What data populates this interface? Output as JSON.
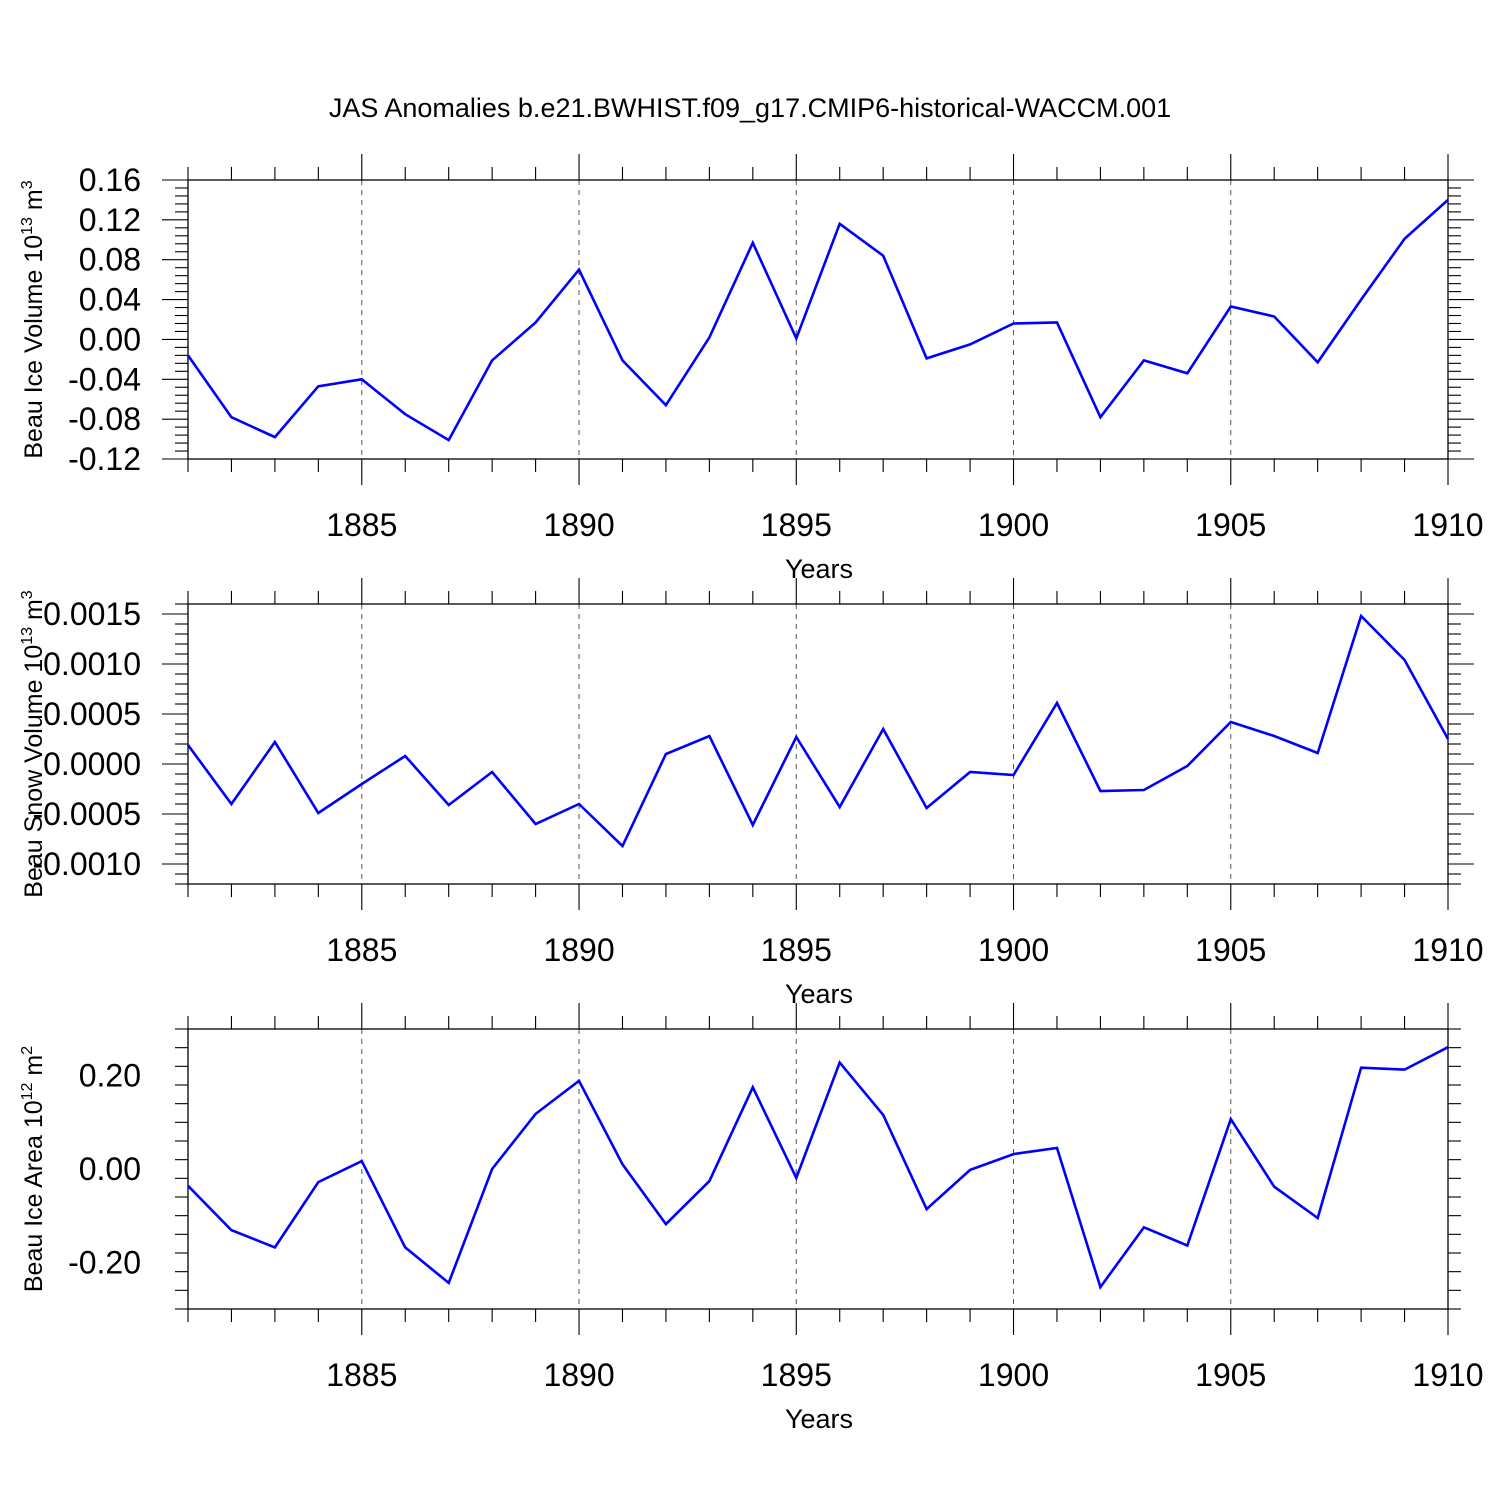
{
  "title": "JAS Anomalies b.e21.BWHIST.f09_g17.CMIP6-historical-WACCM.001",
  "colors": {
    "series": "#0000ff",
    "axes": "#000000",
    "grid": "#555555"
  },
  "chart_data": [
    {
      "type": "line",
      "ylabel": {
        "main": "Beau Ice Volume 10",
        "exp": "13",
        "unit": " m",
        "unit_exp": "3"
      },
      "xlabel": "Years",
      "xlim": [
        1881,
        1910
      ],
      "ylim": [
        -0.12,
        0.16
      ],
      "yticks": [
        -0.12,
        -0.08,
        -0.04,
        0.0,
        0.04,
        0.08,
        0.12,
        0.16
      ],
      "yticklabels": [
        "-0.12",
        "-0.08",
        "-0.04",
        "0.00",
        "0.04",
        "0.08",
        "0.12",
        "0.16"
      ],
      "xticks": [
        1885,
        1890,
        1895,
        1900,
        1905,
        1910
      ],
      "xticklabels": [
        "1885",
        "1890",
        "1895",
        "1900",
        "1905",
        "1910"
      ],
      "grid_x": [
        1885,
        1890,
        1895,
        1900,
        1905
      ],
      "x": [
        1881,
        1882,
        1883,
        1884,
        1885,
        1886,
        1887,
        1888,
        1889,
        1890,
        1891,
        1892,
        1893,
        1894,
        1895,
        1896,
        1897,
        1898,
        1899,
        1900,
        1901,
        1902,
        1903,
        1904,
        1905,
        1906,
        1907,
        1908,
        1909,
        1910
      ],
      "values": [
        -0.016,
        -0.078,
        -0.098,
        -0.047,
        -0.04,
        -0.075,
        -0.101,
        -0.021,
        0.017,
        0.07,
        -0.021,
        -0.066,
        0.002,
        0.097,
        0.001,
        0.116,
        0.084,
        -0.019,
        -0.005,
        0.016,
        0.017,
        -0.078,
        -0.021,
        -0.034,
        0.033,
        0.023,
        -0.023,
        0.04,
        0.101,
        0.14
      ]
    },
    {
      "type": "line",
      "ylabel": {
        "main": "Beau Snow Volume 10",
        "exp": "13",
        "unit": " m",
        "unit_exp": "3"
      },
      "xlabel": "Years",
      "xlim": [
        1881,
        1910
      ],
      "ylim": [
        -0.0012,
        0.0016
      ],
      "yticks": [
        -0.001,
        -0.0005,
        0.0,
        0.0005,
        0.001,
        0.0015
      ],
      "yticklabels": [
        "-0.0010",
        "-0.0005",
        "0.0000",
        "0.0005",
        "0.0010",
        "0.0015"
      ],
      "xticks": [
        1885,
        1890,
        1895,
        1900,
        1905,
        1910
      ],
      "xticklabels": [
        "1885",
        "1890",
        "1895",
        "1900",
        "1905",
        "1910"
      ],
      "grid_x": [
        1885,
        1890,
        1895,
        1900,
        1905
      ],
      "x": [
        1881,
        1882,
        1883,
        1884,
        1885,
        1886,
        1887,
        1888,
        1889,
        1890,
        1891,
        1892,
        1893,
        1894,
        1895,
        1896,
        1897,
        1898,
        1899,
        1900,
        1901,
        1902,
        1903,
        1904,
        1905,
        1906,
        1907,
        1908,
        1909,
        1910
      ],
      "values": [
        0.00019,
        -0.0004,
        0.00022,
        -0.00049,
        -0.0002,
        8e-05,
        -0.00041,
        -8e-05,
        -0.0006,
        -0.0004,
        -0.00082,
        0.0001,
        0.00028,
        -0.00061,
        0.00027,
        -0.00043,
        0.00035,
        -0.00044,
        -8e-05,
        -0.00011,
        0.00061,
        -0.00027,
        -0.00026,
        -2e-05,
        0.00042,
        0.00028,
        0.00011,
        0.00148,
        0.00104,
        0.00025
      ]
    },
    {
      "type": "line",
      "ylabel": {
        "main": "Beau Ice Area 10",
        "exp": "12",
        "unit": " m",
        "unit_exp": "2"
      },
      "xlabel": "Years",
      "xlim": [
        1881,
        1910
      ],
      "ylim": [
        -0.3,
        0.3
      ],
      "yticks": [
        -0.2,
        0.0,
        0.2
      ],
      "yticklabels": [
        "-0.20",
        "0.00",
        "0.20"
      ],
      "xticks": [
        1885,
        1890,
        1895,
        1900,
        1905,
        1910
      ],
      "xticklabels": [
        "1885",
        "1890",
        "1895",
        "1900",
        "1905",
        "1910"
      ],
      "grid_x": [
        1885,
        1890,
        1895,
        1900,
        1905
      ],
      "x": [
        1881,
        1882,
        1883,
        1884,
        1885,
        1886,
        1887,
        1888,
        1889,
        1890,
        1891,
        1892,
        1893,
        1894,
        1895,
        1896,
        1897,
        1898,
        1899,
        1900,
        1901,
        1902,
        1903,
        1904,
        1905,
        1906,
        1907,
        1908,
        1909,
        1910
      ],
      "values": [
        -0.036,
        -0.131,
        -0.168,
        -0.028,
        0.017,
        -0.168,
        -0.244,
        0.0,
        0.118,
        0.189,
        0.01,
        -0.118,
        -0.026,
        0.175,
        -0.019,
        0.228,
        0.116,
        -0.086,
        -0.002,
        0.032,
        0.045,
        -0.253,
        -0.125,
        -0.164,
        0.107,
        -0.038,
        -0.105,
        0.217,
        0.213,
        0.261
      ]
    }
  ]
}
